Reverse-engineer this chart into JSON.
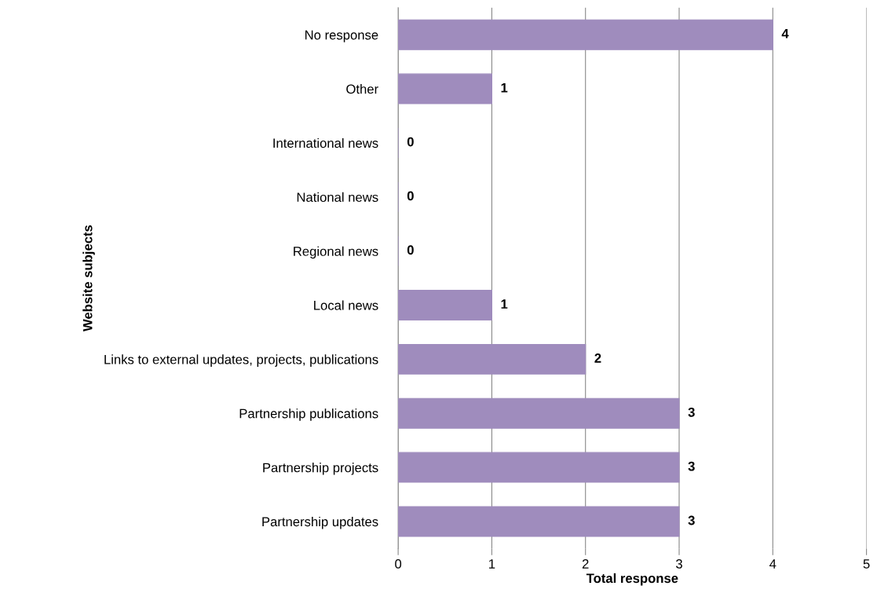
{
  "chart_data": {
    "type": "bar",
    "orientation": "horizontal",
    "categories": [
      "No response",
      "Other",
      "International news",
      "National news",
      "Regional news",
      "Local news",
      "Links to external updates, projects, publications",
      "Partnership publications",
      "Partnership projects",
      "Partnership updates"
    ],
    "values": [
      4,
      1,
      0,
      0,
      0,
      1,
      2,
      3,
      3,
      3
    ],
    "color": "#9f8cbd",
    "xlim": [
      0,
      5
    ],
    "xticks": [
      0,
      1,
      2,
      3,
      4,
      5
    ],
    "xlabel": "Total response",
    "ylabel": "Website subjects",
    "grid": "x",
    "data_labels": true
  }
}
